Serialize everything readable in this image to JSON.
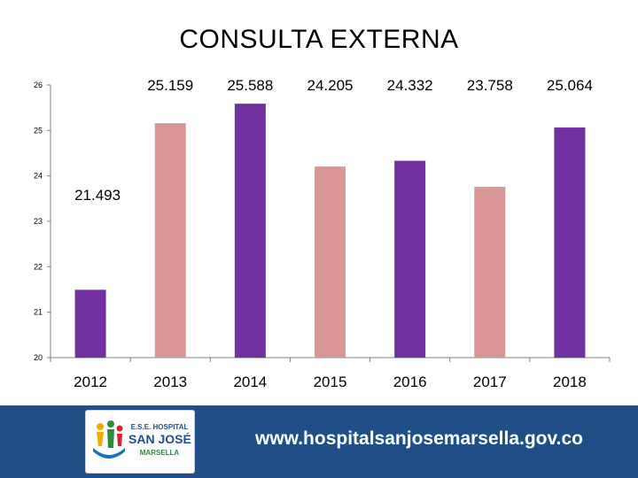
{
  "colors": {
    "purple": "#7030a0",
    "pink": "#d99694",
    "footer": "#1f4f86",
    "axis": "#808080"
  },
  "chart_data": {
    "type": "bar",
    "title": "CONSULTA EXTERNA",
    "categories": [
      "2012",
      "2013",
      "2014",
      "2015",
      "2016",
      "2017",
      "2018"
    ],
    "values": [
      21.493,
      25.159,
      25.588,
      24.205,
      24.332,
      23.758,
      25.064
    ],
    "data_labels": [
      "21.493",
      "25.159",
      "25.588",
      "24.205",
      "24.332",
      "23.758",
      "25.064"
    ],
    "bar_colors": [
      "#7030a0",
      "#d99694",
      "#7030a0",
      "#d99694",
      "#7030a0",
      "#d99694",
      "#7030a0"
    ],
    "ylim": [
      20,
      26
    ],
    "y_ticks": [
      20,
      21,
      22,
      23,
      24,
      25,
      26
    ],
    "y_tick_labels": [
      "20",
      "21",
      "22",
      "23",
      "24",
      "25",
      "26"
    ],
    "grid": false,
    "legend": "none",
    "xlabel": "",
    "ylabel": ""
  },
  "footer": {
    "website": "www.hospitalsanjosemarsella.gov.co",
    "logo_line1": "E.S.E. HOSPITAL",
    "logo_line2": "SAN JOSÉ",
    "logo_line3": "MARSELLA",
    "logo_icon": "family-hands-logo-icon"
  }
}
